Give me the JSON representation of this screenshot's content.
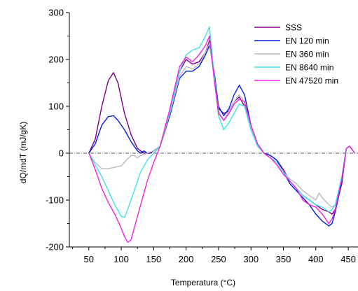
{
  "chart_data": {
    "type": "line",
    "title": "",
    "xlabel": "Temperatura (°C)",
    "ylabel": "dQ/mdT (mJ/gK)",
    "xlim": [
      20,
      465
    ],
    "ylim": [
      -200,
      300
    ],
    "xticks": [
      50,
      100,
      150,
      200,
      250,
      300,
      350,
      400,
      450
    ],
    "yticks": [
      -200,
      -100,
      0,
      100,
      200,
      300
    ],
    "legend_position": "top-right",
    "zero_line": "dash-dot",
    "series": [
      {
        "name": "SSS",
        "color": "#800080",
        "x": [
          50,
          60,
          70,
          80,
          88,
          95,
          105,
          115,
          125,
          135,
          145,
          160,
          175,
          190,
          200,
          210,
          220,
          230,
          236,
          243,
          250,
          258,
          266,
          274,
          282,
          290,
          300,
          310,
          320,
          330,
          340,
          350,
          360,
          370,
          380,
          390,
          400,
          410,
          420,
          425,
          430,
          440,
          447,
          452,
          460
        ],
        "y": [
          0,
          30,
          100,
          155,
          172,
          150,
          85,
          40,
          10,
          0,
          0,
          15,
          90,
          175,
          200,
          190,
          195,
          215,
          240,
          175,
          95,
          85,
          90,
          110,
          120,
          100,
          55,
          20,
          0,
          -5,
          -15,
          -35,
          -60,
          -75,
          -90,
          -100,
          -110,
          -120,
          -125,
          -130,
          -120,
          -65,
          10,
          15,
          0
        ]
      },
      {
        "name": "EN 120 min",
        "color": "#0020e0",
        "x": [
          50,
          60,
          70,
          80,
          88,
          95,
          105,
          115,
          125,
          130,
          135,
          140,
          150,
          160,
          175,
          190,
          200,
          210,
          220,
          230,
          236,
          243,
          250,
          258,
          266,
          274,
          282,
          290,
          300,
          310,
          320,
          330,
          340,
          350,
          360,
          370,
          380,
          390,
          400,
          410,
          420,
          425,
          430,
          440,
          447,
          452,
          460
        ],
        "y": [
          0,
          20,
          60,
          78,
          80,
          70,
          50,
          25,
          5,
          0,
          5,
          0,
          5,
          15,
          80,
          160,
          175,
          175,
          185,
          210,
          230,
          175,
          100,
          80,
          95,
          125,
          145,
          125,
          60,
          20,
          0,
          -5,
          -15,
          -40,
          -65,
          -80,
          -95,
          -110,
          -130,
          -145,
          -155,
          -150,
          -125,
          -60,
          10,
          15,
          0
        ]
      },
      {
        "name": "EN 360 min",
        "color": "#bbbbbb",
        "x": [
          50,
          60,
          70,
          80,
          90,
          100,
          110,
          115,
          120,
          125,
          130,
          140,
          150,
          160,
          175,
          190,
          200,
          210,
          220,
          230,
          236,
          243,
          250,
          258,
          266,
          274,
          282,
          290,
          300,
          310,
          320,
          330,
          340,
          350,
          360,
          370,
          380,
          390,
          400,
          405,
          410,
          420,
          425,
          430,
          440,
          447,
          452,
          460
        ],
        "y": [
          0,
          -20,
          -33,
          -33,
          -30,
          -27,
          -12,
          -5,
          -5,
          -10,
          -5,
          0,
          5,
          15,
          85,
          165,
          185,
          180,
          190,
          215,
          235,
          165,
          90,
          70,
          90,
          110,
          125,
          110,
          55,
          20,
          0,
          -10,
          -20,
          -40,
          -55,
          -65,
          -80,
          -90,
          -100,
          -85,
          -95,
          -110,
          -115,
          -110,
          -55,
          10,
          15,
          0
        ]
      },
      {
        "name": "EN 8640 min",
        "color": "#40e0f0",
        "x": [
          50,
          60,
          70,
          80,
          90,
          100,
          105,
          110,
          120,
          130,
          140,
          150,
          160,
          175,
          190,
          200,
          210,
          220,
          230,
          236,
          243,
          250,
          258,
          266,
          274,
          282,
          290,
          300,
          310,
          320,
          330,
          340,
          350,
          360,
          370,
          380,
          390,
          400,
          410,
          420,
          425,
          430,
          440,
          447,
          452,
          460
        ],
        "y": [
          0,
          -25,
          -50,
          -80,
          -110,
          -135,
          -137,
          -120,
          -80,
          -40,
          -15,
          0,
          15,
          90,
          175,
          210,
          220,
          225,
          250,
          270,
          170,
          80,
          50,
          65,
          85,
          105,
          100,
          50,
          15,
          0,
          -10,
          -20,
          -40,
          -60,
          -75,
          -90,
          -100,
          -110,
          -115,
          -125,
          -120,
          -110,
          -50,
          10,
          15,
          0
        ]
      },
      {
        "name": "EN 47520 min",
        "color": "#ee22dd",
        "x": [
          50,
          60,
          70,
          80,
          90,
          100,
          105,
          110,
          115,
          120,
          130,
          140,
          150,
          160,
          175,
          190,
          200,
          210,
          220,
          230,
          236,
          243,
          250,
          258,
          266,
          274,
          282,
          290,
          300,
          310,
          320,
          330,
          340,
          350,
          360,
          370,
          380,
          390,
          400,
          410,
          420,
          425,
          430,
          440,
          447,
          452,
          460
        ],
        "y": [
          0,
          -35,
          -75,
          -105,
          -130,
          -160,
          -178,
          -190,
          -185,
          -160,
          -110,
          -60,
          -20,
          15,
          95,
          185,
          205,
          195,
          210,
          230,
          250,
          160,
          85,
          70,
          85,
          105,
          115,
          110,
          60,
          20,
          0,
          -10,
          -25,
          -45,
          -60,
          -75,
          -100,
          -110,
          -115,
          -130,
          -150,
          -140,
          -120,
          -55,
          10,
          15,
          0
        ]
      }
    ]
  }
}
